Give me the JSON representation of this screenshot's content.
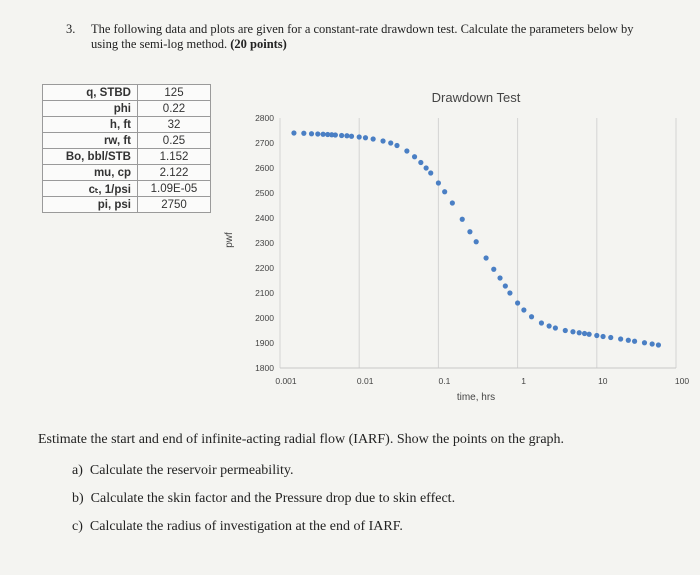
{
  "question": {
    "number": "3.",
    "text_plain": "The following data and plots are given for a constant-rate drawdown test. Calculate the parameters below by using the semi-log method.",
    "points": "(20 points)"
  },
  "params_table": [
    {
      "label": "q, STBD",
      "value": "125"
    },
    {
      "label": "phi",
      "value": "0.22"
    },
    {
      "label": "h, ft",
      "value": "32"
    },
    {
      "label": "rw, ft",
      "value": "0.25"
    },
    {
      "label": "Bo, bbl/STB",
      "value": "1.152"
    },
    {
      "label": "mu, cp",
      "value": "2.122"
    },
    {
      "label": "cₜ, 1/psi",
      "value": "1.09E-05"
    },
    {
      "label": "pi, psi",
      "value": "2750"
    }
  ],
  "chart_data": {
    "type": "scatter",
    "title": "Drawdown Test",
    "xlabel": "time, hrs",
    "ylabel": "pwf",
    "x_scale": "log",
    "xlim": [
      0.001,
      100
    ],
    "ylim": [
      1800,
      2800
    ],
    "x_ticks": [
      "0.001",
      "0.01",
      "0.1",
      "1",
      "10",
      "100"
    ],
    "y_ticks": [
      "1800",
      "1900",
      "2000",
      "2100",
      "2200",
      "2300",
      "2400",
      "2500",
      "2600",
      "2700",
      "2800"
    ],
    "grid": "vertical",
    "marker_color": "#4a7fc4",
    "series": [
      {
        "x": [
          0.0015,
          0.002,
          0.0025,
          0.003,
          0.0035,
          0.004,
          0.0045,
          0.005,
          0.006,
          0.007,
          0.008,
          0.01,
          0.012,
          0.015,
          0.02,
          0.025,
          0.03,
          0.04,
          0.05,
          0.06,
          0.07,
          0.08,
          0.1,
          0.12,
          0.15,
          0.2,
          0.25,
          0.3,
          0.4,
          0.5,
          0.6,
          0.7,
          0.8,
          1,
          1.2,
          1.5,
          2,
          2.5,
          3,
          4,
          5,
          6,
          7,
          8,
          10,
          12,
          15,
          20,
          25,
          30,
          40,
          50,
          60
        ],
        "y": [
          2740,
          2739,
          2737,
          2736,
          2735,
          2734,
          2733,
          2732,
          2730,
          2729,
          2727,
          2724,
          2721,
          2716,
          2708,
          2700,
          2690,
          2668,
          2645,
          2622,
          2600,
          2580,
          2540,
          2505,
          2460,
          2395,
          2345,
          2305,
          2240,
          2195,
          2160,
          2128,
          2100,
          2060,
          2032,
          2005,
          1980,
          1968,
          1960,
          1950,
          1945,
          1941,
          1938,
          1935,
          1930,
          1926,
          1922,
          1916,
          1911,
          1907,
          1901,
          1896,
          1892
        ]
      }
    ]
  },
  "tasks": {
    "intro": "Estimate the start and end of infinite-acting radial flow (IARF). Show the points on the graph.",
    "a_letter": "a)",
    "a_text": "Calculate the reservoir permeability.",
    "b_letter": "b)",
    "b_text": "Calculate the skin factor and the Pressure drop due to skin effect.",
    "c_letter": "c)",
    "c_text": "Calculate the radius of investigation at the end of IARF."
  }
}
